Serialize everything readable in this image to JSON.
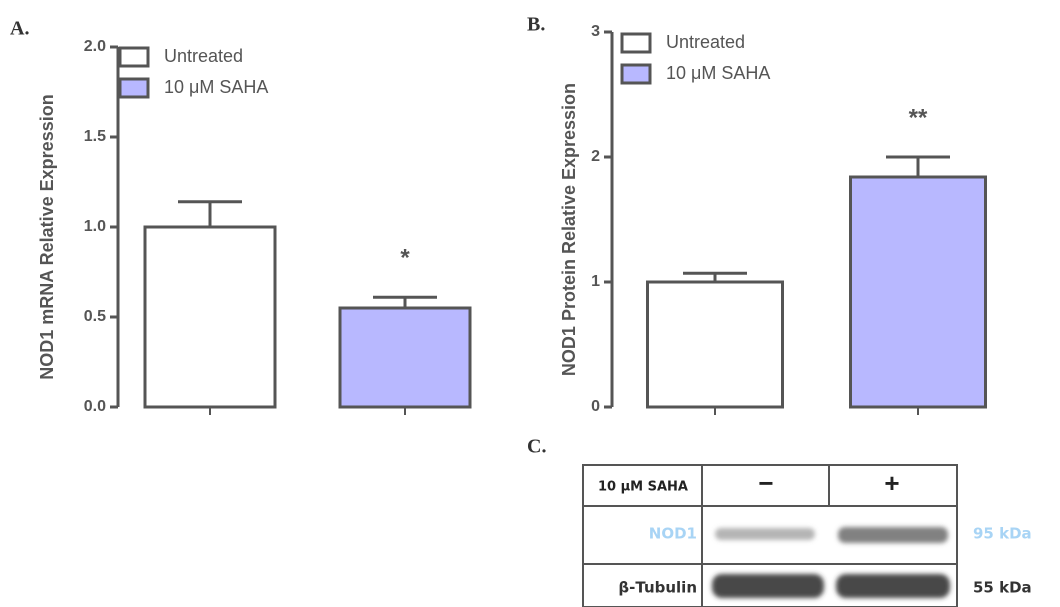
{
  "panels": [
    "A.",
    "B.",
    "C."
  ],
  "chart_data": [
    {
      "type": "bar",
      "ylabel": "NOD1 mRNA Relative Expression",
      "categories": [
        null,
        null
      ],
      "series": [
        {
          "name": "Untreated",
          "color": "#ffffff",
          "values": [
            1.0,
            null
          ],
          "errors": [
            0.14,
            null
          ]
        },
        {
          "name": "10 μM SAHA",
          "color": "#b8b8ff",
          "values": [
            null,
            0.55
          ],
          "errors": [
            null,
            0.06
          ]
        }
      ],
      "significance": [
        null,
        "*"
      ],
      "ylim": [
        0,
        2
      ],
      "yticks": [
        {
          "value": 0,
          "label": "0.0"
        },
        {
          "value": 0.5,
          "label": "0.5"
        },
        {
          "value": 1,
          "label": "1.0"
        },
        {
          "value": 1.5,
          "label": "1.5"
        },
        {
          "value": 2,
          "label": "2.0"
        }
      ]
    },
    {
      "type": "bar",
      "ylabel": "NOD1 Protein Relative Expression",
      "categories": [
        null,
        null
      ],
      "series": [
        {
          "name": "Untreated",
          "color": "#ffffff",
          "values": [
            1.0,
            null
          ],
          "errors": [
            0.07,
            null
          ]
        },
        {
          "name": "10 μM SAHA",
          "color": "#b8b8ff",
          "values": [
            null,
            1.84
          ],
          "errors": [
            null,
            0.16
          ]
        }
      ],
      "significance": [
        null,
        "**"
      ],
      "ylim": [
        0,
        3
      ],
      "yticks": [
        0,
        1,
        2,
        3
      ]
    }
  ],
  "blot": {
    "header": [
      "10 μM SAHA",
      "−",
      "+"
    ],
    "rows": [
      {
        "label": "NOD1",
        "size": "95 kDa"
      },
      {
        "label": "β-Tubulin",
        "size": "55 kDa"
      }
    ]
  }
}
